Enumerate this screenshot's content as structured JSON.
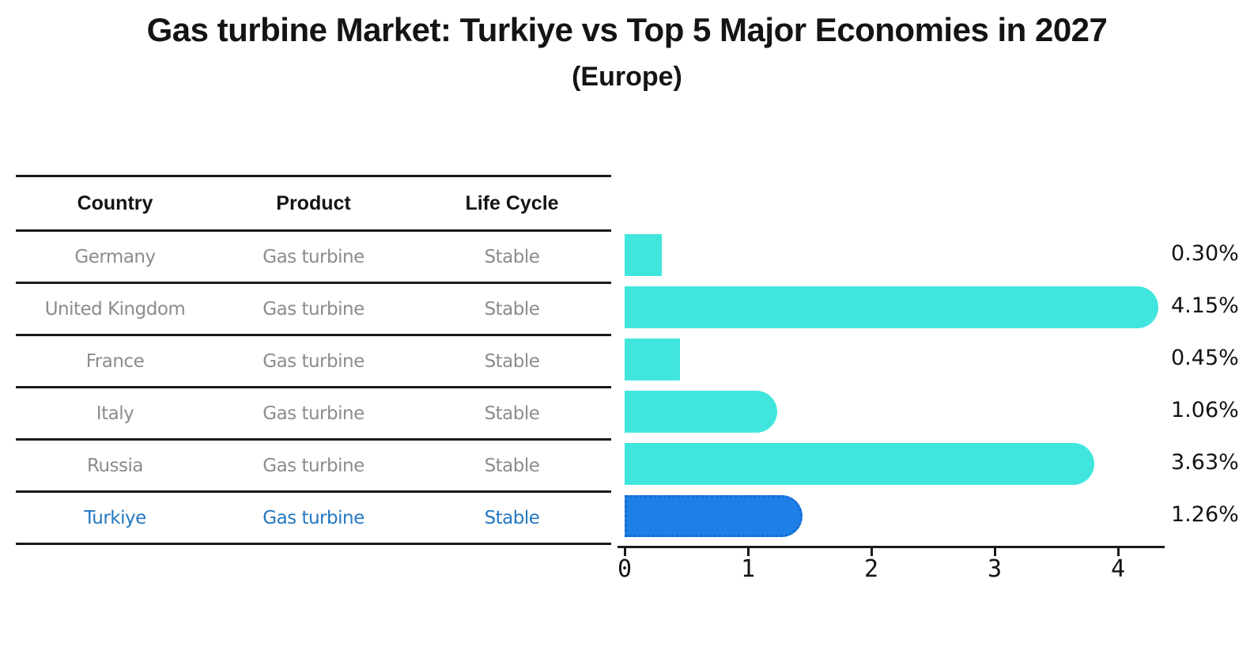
{
  "header": {
    "title": "Gas turbine Market: Turkiye vs Top 5 Major Economies in 2027",
    "subtitle": "(Europe)"
  },
  "table": {
    "columns": [
      "Country",
      "Product",
      "Life Cycle"
    ],
    "rows": [
      {
        "country": "Germany",
        "product": "Gas turbine",
        "life_cycle": "Stable",
        "highlight": false
      },
      {
        "country": "United Kingdom",
        "product": "Gas turbine",
        "life_cycle": "Stable",
        "highlight": false
      },
      {
        "country": "France",
        "product": "Gas turbine",
        "life_cycle": "Stable",
        "highlight": false
      },
      {
        "country": "Italy",
        "product": "Gas turbine",
        "life_cycle": "Stable",
        "highlight": false
      },
      {
        "country": "Russia",
        "product": "Gas turbine",
        "life_cycle": "Stable",
        "highlight": true
      }
    ]
  },
  "chart_data": {
    "type": "bar",
    "orientation": "horizontal",
    "title": "Gas turbine Market: Turkiye vs Top 5 Major Economies in 2027",
    "subtitle": "(Europe)",
    "categories": [
      "Germany",
      "United Kingdom",
      "France",
      "Italy",
      "Russia",
      "Turkiye"
    ],
    "values": [
      0.3,
      4.15,
      0.45,
      1.06,
      3.63,
      1.26
    ],
    "value_labels": [
      "0.30%",
      "4.15%",
      "0.45%",
      "1.06%",
      "3.63%",
      "1.26%"
    ],
    "xlabel": "",
    "ylabel": "",
    "xlim": [
      0,
      4.4
    ],
    "xticks": [
      0,
      1,
      2,
      3,
      4
    ],
    "grid": false,
    "legend_position": "none",
    "bar_color": "#40e6de",
    "highlight_color": "#1e80e6",
    "highlight_border_color": "#146bd2",
    "highlight_index": 5,
    "highlight_category": "Turkiye"
  },
  "colors": {
    "text": "#141414",
    "muted_text": "#8c8c8c",
    "highlight_text": "#2478c0",
    "line": "#1a1a1a"
  }
}
